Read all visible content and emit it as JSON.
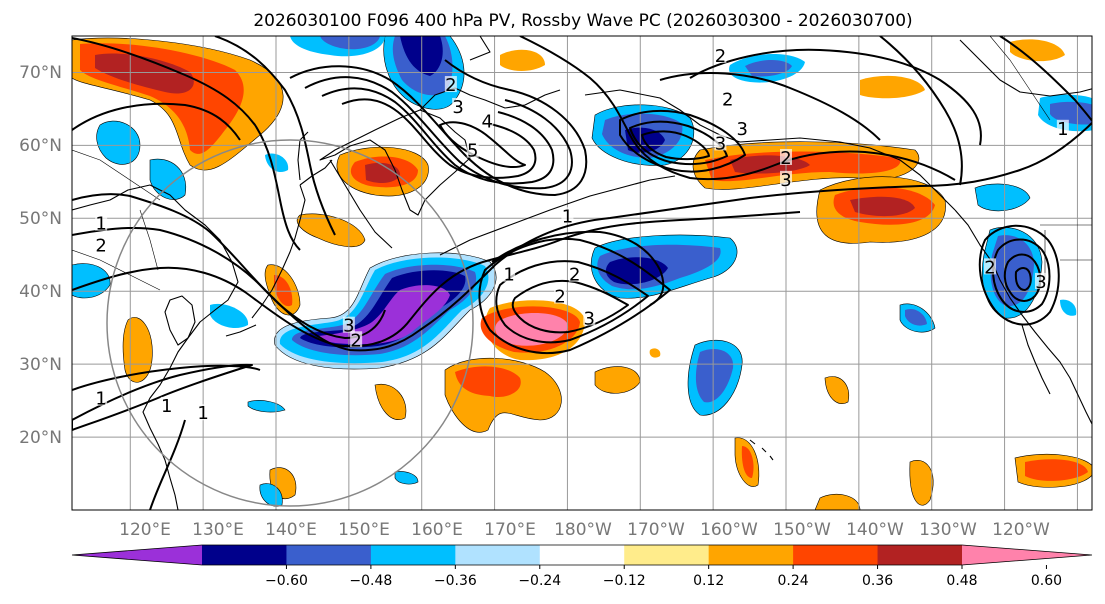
{
  "title": "2026030100 F096 400 hPa PV, Rossby Wave PC (2026030300 - 2026030700)",
  "lat_labels": [
    "70°N",
    "60°N",
    "50°N",
    "40°N",
    "30°N",
    "20°N"
  ],
  "lon_labels": [
    "120°E",
    "130°E",
    "140°E",
    "150°E",
    "160°E",
    "170°E",
    "180°W",
    "170°W",
    "160°W",
    "150°W",
    "140°W",
    "130°W",
    "120°W"
  ],
  "map_extent": {
    "lon_min": 112,
    "lon_max": 252,
    "lat_min": 10,
    "lat_max": 75
  },
  "colorbar": {
    "tick_labels": [
      "−0.60",
      "−0.48",
      "−0.36",
      "−0.24",
      "−0.12",
      "0.12",
      "0.24",
      "0.36",
      "0.48",
      "0.60"
    ],
    "colors": [
      "#9b30d9",
      "#00008b",
      "#3a5fcd",
      "#00bfff",
      "#b0e2ff",
      "#ffffff",
      "#ffec8b",
      "#ffa500",
      "#ff4500",
      "#b22222",
      "#ff82ab"
    ]
  },
  "contour_labels": [
    {
      "text": "1",
      "lon": 116,
      "lat": 49
    },
    {
      "text": "2",
      "lon": 116,
      "lat": 46
    },
    {
      "text": "2",
      "lon": 151,
      "lat": 33
    },
    {
      "text": "3",
      "lon": 150,
      "lat": 35
    },
    {
      "text": "1",
      "lon": 116,
      "lat": 25
    },
    {
      "text": "1",
      "lon": 125,
      "lat": 24
    },
    {
      "text": "1",
      "lon": 130,
      "lat": 23
    },
    {
      "text": "2",
      "lon": 164,
      "lat": 68
    },
    {
      "text": "3",
      "lon": 165,
      "lat": 65
    },
    {
      "text": "4",
      "lon": 169,
      "lat": 63
    },
    {
      "text": "5",
      "lon": 167,
      "lat": 59
    },
    {
      "text": "1",
      "lon": 180,
      "lat": 50
    },
    {
      "text": "1",
      "lon": 172,
      "lat": 42
    },
    {
      "text": "2",
      "lon": 181,
      "lat": 42
    },
    {
      "text": "2",
      "lon": 179,
      "lat": 39
    },
    {
      "text": "3",
      "lon": 183,
      "lat": 36
    },
    {
      "text": "2",
      "lon": 201,
      "lat": 72
    },
    {
      "text": "2",
      "lon": 202,
      "lat": 66
    },
    {
      "text": "3",
      "lon": 204,
      "lat": 62
    },
    {
      "text": "3",
      "lon": 201,
      "lat": 60
    },
    {
      "text": "2",
      "lon": 210,
      "lat": 58
    },
    {
      "text": "3",
      "lon": 210,
      "lat": 55
    },
    {
      "text": "1",
      "lon": 248,
      "lat": 62
    },
    {
      "text": "2",
      "lon": 238,
      "lat": 43
    },
    {
      "text": "3",
      "lon": 245,
      "lat": 41
    }
  ]
}
